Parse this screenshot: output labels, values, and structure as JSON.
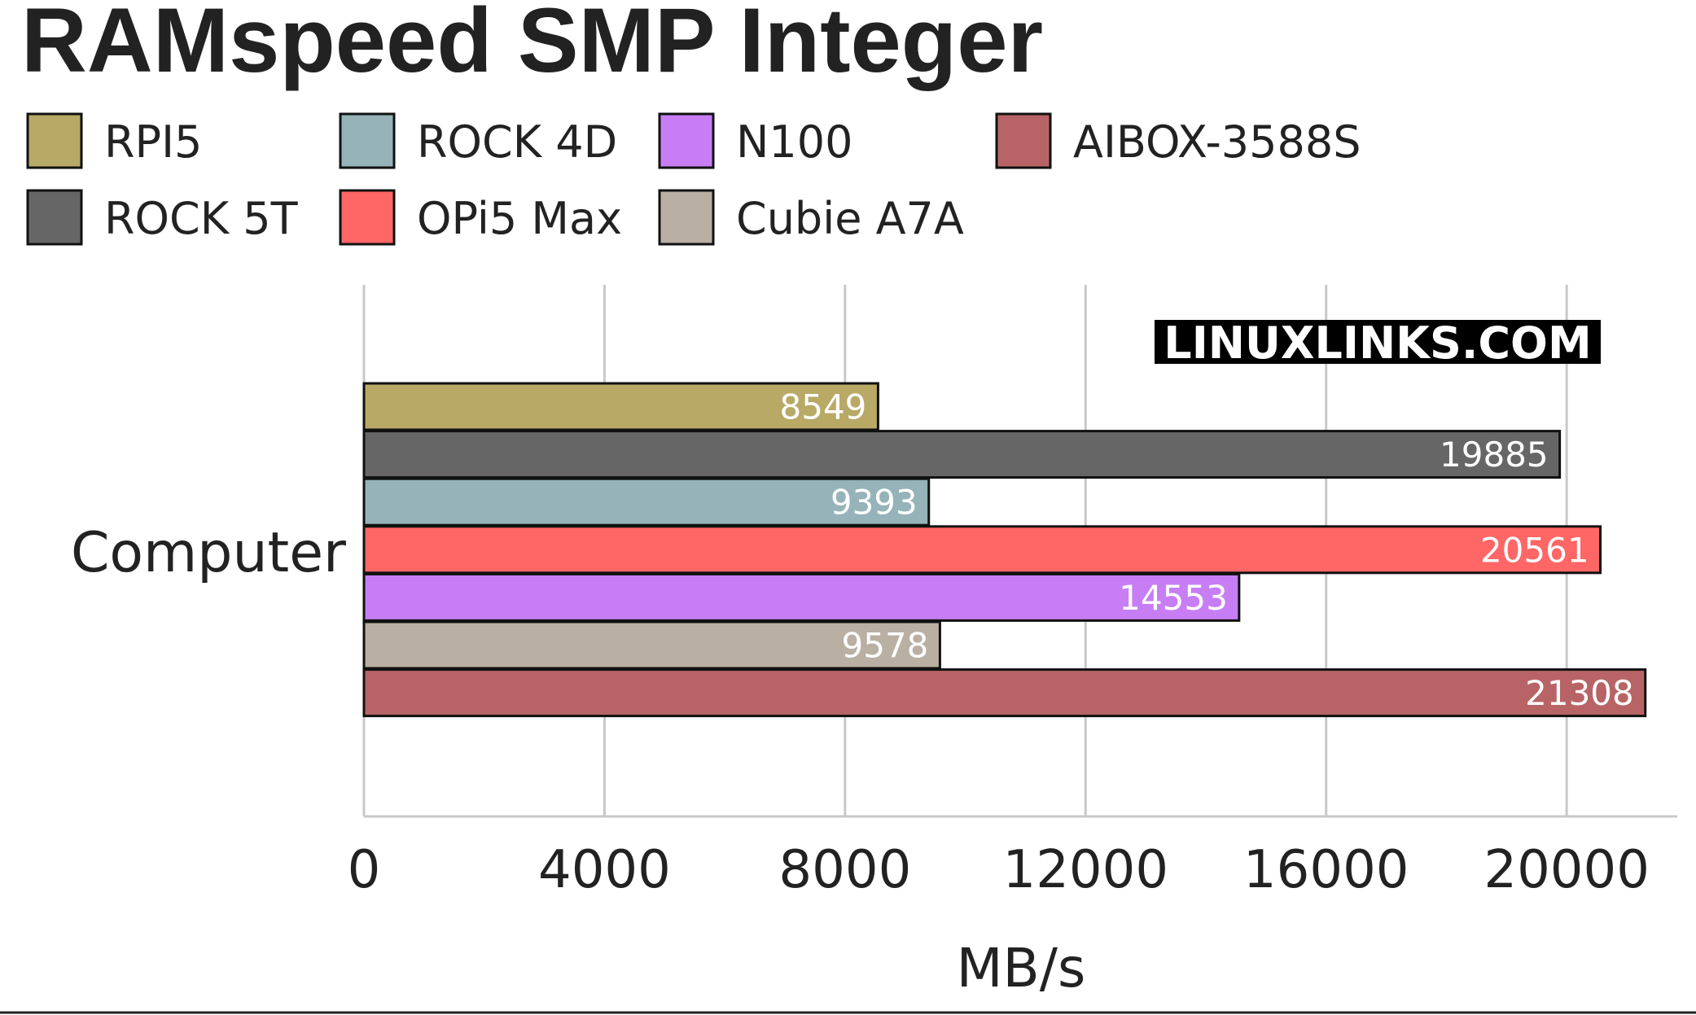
{
  "chart_data": {
    "type": "bar",
    "orientation": "horizontal",
    "title": "RAMspeed SMP Integer",
    "xlabel": "MB/s",
    "ylabel": "",
    "categories": [
      "Computer"
    ],
    "xlim": [
      0,
      22000
    ],
    "xticks": [
      0,
      4000,
      8000,
      12000,
      16000,
      20000
    ],
    "grid": "vertical",
    "legend_position": "top-left",
    "series": [
      {
        "name": "RPI5",
        "color": "#b8a967",
        "values": [
          8549
        ]
      },
      {
        "name": "ROCK 5T",
        "color": "#666666",
        "values": [
          19885
        ]
      },
      {
        "name": "ROCK 4D",
        "color": "#95b3b8",
        "values": [
          9393
        ]
      },
      {
        "name": "OPi5 Max",
        "color": "#ff6666",
        "values": [
          20561
        ]
      },
      {
        "name": "N100",
        "color": "#c77ef5",
        "values": [
          14553
        ]
      },
      {
        "name": "Cubie A7A",
        "color": "#b9afa3",
        "values": [
          9578
        ]
      },
      {
        "name": "AIBOX-3588S",
        "color": "#b86466",
        "values": [
          21308
        ]
      }
    ],
    "legend_order": [
      "RPI5",
      "ROCK 4D",
      "N100",
      "AIBOX-3588S",
      "ROCK 5T",
      "OPi5 Max",
      "Cubie A7A"
    ]
  },
  "watermark": "LINUXLINKS.COM"
}
